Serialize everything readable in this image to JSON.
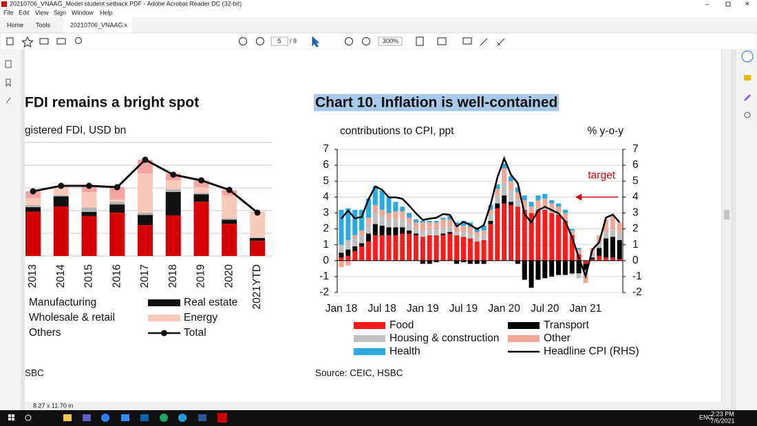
{
  "window": {
    "title": "20210706_VNAAG_Model student setback.PDF - Adobe Acrobat Reader DC (32-bit)",
    "menu": [
      "File",
      "Edit",
      "View",
      "Sign",
      "Window",
      "Help"
    ],
    "tabs": [
      "Home",
      "Tools",
      "20210706_VNAAG..."
    ],
    "page_number": "5",
    "page_count": "/ 9",
    "zoom": "300%",
    "page_size": "8.27 x 11.70 in",
    "clock": {
      "time": "2:23 PM",
      "date": "7/6/2021"
    },
    "language": "ENG"
  },
  "chart_data": [
    {
      "type": "bar",
      "stacked": true,
      "title": "FDI remains a bright spot",
      "subtitle": "gistered  FDI, USD bn",
      "categories": [
        "2013",
        "2014",
        "2015",
        "2016",
        "2017",
        "2018",
        "2019",
        "2020",
        "2021YTD"
      ],
      "series": [
        {
          "name": "Manufacturing",
          "color": "#d40000",
          "values": [
            19.5,
            21.8,
            17.6,
            19.1,
            13.6,
            17.9,
            23.9,
            14.2,
            6.7
          ]
        },
        {
          "name": "Real estate",
          "color": "#111111",
          "values": [
            2,
            4.5,
            1.8,
            3.6,
            4.5,
            10.3,
            3.3,
            1.8,
            1.2
          ]
        },
        {
          "name": "Wholesale & retail",
          "color": "#b3b3b3",
          "values": [
            1,
            0.5,
            2,
            1.2,
            1,
            1.2,
            0.6,
            0.6,
            0.3
          ]
        },
        {
          "name": "Energy",
          "color": "#f9c9bb",
          "values": [
            3,
            3.5,
            6.7,
            1,
            17.3,
            3.9,
            2.4,
            10,
            10.9
          ]
        },
        {
          "name": "Others",
          "color": "#f5a3a3",
          "values": [
            3,
            0.6,
            2.8,
            5.5,
            6,
            3,
            3,
            2.4,
            0.3
          ]
        },
        {
          "name": "Total",
          "type": "line",
          "color": "#111111",
          "values": [
            28.5,
            30.9,
            30.9,
            30.3,
            42.4,
            35.8,
            33.3,
            29.1,
            19.1
          ]
        }
      ],
      "ylim": [
        0,
        50
      ],
      "ygrid": [
        0,
        10,
        20,
        30,
        40,
        50
      ],
      "source": "SBC"
    },
    {
      "type": "bar",
      "stacked": true,
      "title": "Chart 10. Inflation is well-contained",
      "y_label": "contributions  to CPI, ppt",
      "y2_label": "% y-o-y",
      "categories": [
        "Jan 18",
        null,
        null,
        null,
        null,
        null,
        "Jul 18",
        null,
        null,
        null,
        null,
        null,
        "Jan 19",
        null,
        null,
        null,
        null,
        null,
        "Jul 19",
        null,
        null,
        null,
        null,
        null,
        "Jan 20",
        null,
        null,
        null,
        null,
        null,
        "Jul 20",
        null,
        null,
        null,
        null,
        null,
        "Jan 21",
        null,
        null,
        null,
        null,
        null
      ],
      "series": [
        {
          "name": "Food",
          "color": "#ff1a1a",
          "values": [
            0.2,
            0.3,
            0.6,
            0.9,
            1.2,
            1.6,
            1.6,
            1.6,
            1.6,
            1.7,
            1.7,
            1.6,
            1.5,
            1.6,
            1.6,
            1.6,
            1.7,
            1.6,
            1.5,
            1.4,
            1.2,
            1.3,
            2.3,
            3.3,
            3.6,
            3.5,
            3.4,
            3.2,
            3.0,
            3.2,
            3.2,
            3.0,
            2.9,
            2.5,
            1.6,
            0.4,
            -0.2,
            0.1,
            0.3,
            0.2,
            0.2,
            0.1
          ]
        },
        {
          "name": "Transport",
          "color": "#000000",
          "values": [
            0.3,
            0.4,
            0.3,
            0.2,
            0.5,
            0.7,
            0.6,
            0.5,
            0.5,
            0.4,
            0.2,
            0.1,
            -0.2,
            -0.2,
            -0.1,
            0.1,
            0.1,
            -0.2,
            -0.1,
            -0.2,
            -0.2,
            -0.2,
            0.2,
            0.3,
            0.5,
            0.2,
            -0.2,
            -1.2,
            -1.7,
            -1.2,
            -1.1,
            -1.0,
            -0.9,
            -0.9,
            -0.8,
            -0.8,
            -0.4,
            0.1,
            0.5,
            1.2,
            1.3,
            1.2
          ]
        },
        {
          "name": "Housing & construction",
          "color": "#bfbfbf",
          "values": [
            0.5,
            0.6,
            0.5,
            0.5,
            0.6,
            0.7,
            0.6,
            0.5,
            0.5,
            0.5,
            0.4,
            0.3,
            0.4,
            0.4,
            0.4,
            0.4,
            0.3,
            0.2,
            0.3,
            0.3,
            0.3,
            0.3,
            0.4,
            0.5,
            0.8,
            0.7,
            0.5,
            0.2,
            0.0,
            0.1,
            0.2,
            0.2,
            0.1,
            0.1,
            -0.1,
            -0.3,
            -0.3,
            0.2,
            0.3,
            0.4,
            0.5,
            0.5
          ]
        },
        {
          "name": "Other",
          "color": "#f5a594",
          "values": [
            -0.4,
            -0.3,
            0.2,
            0.3,
            0.4,
            0.5,
            0.4,
            0.4,
            0.5,
            0.5,
            0.4,
            0.4,
            0.5,
            0.4,
            0.4,
            0.5,
            0.5,
            0.4,
            0.4,
            0.4,
            0.3,
            0.3,
            0.3,
            0.4,
            0.9,
            0.6,
            0.4,
            0.4,
            0.4,
            0.5,
            0.5,
            0.4,
            0.4,
            0.4,
            0.3,
            0.3,
            -0.5,
            0.4,
            0.5,
            0.8,
            0.8,
            0.6
          ]
        },
        {
          "name": "Health",
          "color": "#29abe2",
          "values": [
            2.2,
            2.0,
            1.6,
            1.3,
            1.2,
            1.2,
            1.2,
            1.0,
            0.6,
            0.3,
            0.3,
            0.2,
            0.1,
            0.1,
            0.1,
            0.1,
            0.2,
            0.2,
            0.3,
            0.3,
            0.3,
            0.3,
            0.3,
            0.3,
            0.3,
            0.3,
            0.3,
            0.3,
            0.3,
            0.3,
            0.3,
            0.2,
            0.2,
            0.2,
            0.1,
            0.1,
            0.0,
            0.0,
            0.0,
            0.0,
            0.0,
            0.0
          ]
        },
        {
          "name": "Headline CPI (RHS)",
          "type": "line",
          "axis": "y2",
          "color": "#000000",
          "values": [
            2.65,
            3.15,
            2.66,
            2.75,
            3.86,
            4.67,
            4.46,
            3.98,
            3.98,
            3.89,
            3.46,
            2.98,
            2.56,
            2.64,
            2.7,
            2.93,
            2.88,
            2.16,
            2.44,
            2.26,
            1.98,
            2.24,
            3.52,
            5.23,
            6.43,
            5.4,
            4.87,
            2.93,
            2.4,
            3.17,
            3.39,
            3.18,
            2.98,
            2.47,
            1.48,
            0.19,
            -0.97,
            0.7,
            1.16,
            2.7,
            2.9,
            2.41
          ]
        }
      ],
      "ylim": [
        -2,
        7
      ],
      "yticks": [
        -2,
        -1,
        0,
        1,
        2,
        3,
        4,
        5,
        6,
        7
      ],
      "y2lim": [
        -2,
        7
      ],
      "y2ticks": [
        -2,
        -1,
        0,
        1,
        2,
        3,
        4,
        5,
        6,
        7
      ],
      "grid": true,
      "target": {
        "label": "target",
        "value": 4,
        "color": "#e00000"
      },
      "source": "Source: CEIC, HSBC"
    }
  ]
}
